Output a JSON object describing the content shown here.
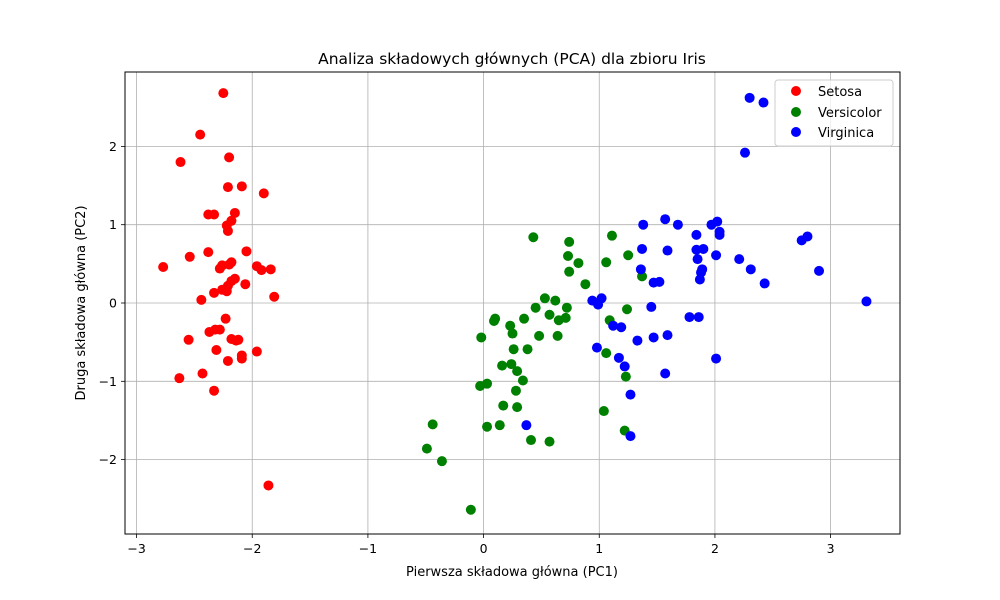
{
  "chart_data": {
    "type": "scatter",
    "title": "Analiza składowych głównych (PCA) dla zbioru Iris",
    "xlabel": "Pierwsza składowa główna (PC1)",
    "ylabel": "Druga składowa główna (PC2)",
    "xlim": [
      -3.1,
      3.6
    ],
    "ylim": [
      -2.95,
      2.95
    ],
    "x_ticks": [
      -3,
      -2,
      -1,
      0,
      1,
      2,
      3
    ],
    "x_tick_labels": [
      "−3",
      "−2",
      "−1",
      "0",
      "1",
      "2",
      "3"
    ],
    "y_ticks": [
      -2,
      -1,
      0,
      1,
      2
    ],
    "y_tick_labels": [
      "−2",
      "−1",
      "0",
      "1",
      "2"
    ],
    "grid": true,
    "legend_position": "top-right",
    "series": [
      {
        "name": "Setosa",
        "color": "#ff0000",
        "points": [
          [
            -2.25,
            2.68
          ],
          [
            -2.45,
            2.15
          ],
          [
            -2.62,
            1.8
          ],
          [
            -2.2,
            1.86
          ],
          [
            -2.21,
            1.48
          ],
          [
            -2.09,
            1.49
          ],
          [
            -1.9,
            1.4
          ],
          [
            -2.38,
            1.13
          ],
          [
            -2.33,
            1.13
          ],
          [
            -2.15,
            1.15
          ],
          [
            -2.18,
            1.05
          ],
          [
            -2.22,
            0.99
          ],
          [
            -2.21,
            0.92
          ],
          [
            -2.05,
            0.66
          ],
          [
            -2.38,
            0.65
          ],
          [
            -2.54,
            0.59
          ],
          [
            -2.77,
            0.46
          ],
          [
            -2.18,
            0.52
          ],
          [
            -2.2,
            0.49
          ],
          [
            -2.26,
            0.48
          ],
          [
            -2.28,
            0.44
          ],
          [
            -1.96,
            0.47
          ],
          [
            -1.92,
            0.42
          ],
          [
            -1.84,
            0.43
          ],
          [
            -2.15,
            0.31
          ],
          [
            -2.18,
            0.28
          ],
          [
            -2.21,
            0.22
          ],
          [
            -2.06,
            0.24
          ],
          [
            -2.22,
            0.15
          ],
          [
            -2.33,
            0.13
          ],
          [
            -2.26,
            0.17
          ],
          [
            -1.81,
            0.08
          ],
          [
            -2.44,
            0.04
          ],
          [
            -2.23,
            -0.2
          ],
          [
            -2.32,
            -0.34
          ],
          [
            -2.37,
            -0.37
          ],
          [
            -2.28,
            -0.34
          ],
          [
            -2.55,
            -0.47
          ],
          [
            -2.18,
            -0.46
          ],
          [
            -2.14,
            -0.48
          ],
          [
            -2.12,
            -0.47
          ],
          [
            -2.31,
            -0.6
          ],
          [
            -1.96,
            -0.62
          ],
          [
            -2.09,
            -0.67
          ],
          [
            -2.09,
            -0.71
          ],
          [
            -2.21,
            -0.74
          ],
          [
            -2.63,
            -0.96
          ],
          [
            -2.43,
            -0.9
          ],
          [
            -2.33,
            -1.12
          ],
          [
            -1.86,
            -2.33
          ]
        ]
      },
      {
        "name": "Versicolor",
        "color": "#008000",
        "points": [
          [
            0.43,
            0.84
          ],
          [
            0.74,
            0.78
          ],
          [
            1.11,
            0.86
          ],
          [
            0.82,
            0.51
          ],
          [
            1.06,
            0.52
          ],
          [
            1.25,
            0.61
          ],
          [
            0.73,
            0.6
          ],
          [
            0.74,
            0.4
          ],
          [
            0.88,
            0.24
          ],
          [
            1.37,
            0.34
          ],
          [
            0.62,
            0.03
          ],
          [
            0.53,
            0.06
          ],
          [
            0.45,
            -0.06
          ],
          [
            0.72,
            -0.06
          ],
          [
            1.24,
            -0.08
          ],
          [
            0.57,
            -0.15
          ],
          [
            0.71,
            -0.19
          ],
          [
            0.65,
            -0.22
          ],
          [
            1.09,
            -0.22
          ],
          [
            0.1,
            -0.2
          ],
          [
            0.09,
            -0.23
          ],
          [
            0.35,
            -0.2
          ],
          [
            0.23,
            -0.29
          ],
          [
            0.25,
            -0.39
          ],
          [
            0.48,
            -0.42
          ],
          [
            0.64,
            -0.42
          ],
          [
            -0.02,
            -0.44
          ],
          [
            0.38,
            -0.59
          ],
          [
            0.26,
            -0.59
          ],
          [
            1.06,
            -0.64
          ],
          [
            0.16,
            -0.8
          ],
          [
            0.24,
            -0.78
          ],
          [
            0.29,
            -0.87
          ],
          [
            0.34,
            -0.99
          ],
          [
            0.03,
            -1.03
          ],
          [
            -0.03,
            -1.06
          ],
          [
            1.23,
            -0.94
          ],
          [
            0.28,
            -1.12
          ],
          [
            0.17,
            -1.31
          ],
          [
            0.29,
            -1.33
          ],
          [
            1.04,
            -1.38
          ],
          [
            -0.44,
            -1.55
          ],
          [
            0.14,
            -1.56
          ],
          [
            0.03,
            -1.58
          ],
          [
            1.22,
            -1.63
          ],
          [
            0.41,
            -1.75
          ],
          [
            0.57,
            -1.77
          ],
          [
            -0.49,
            -1.86
          ],
          [
            -0.36,
            -2.02
          ],
          [
            -0.11,
            -2.64
          ]
        ]
      },
      {
        "name": "Virginica",
        "color": "#0000ff",
        "points": [
          [
            2.3,
            2.62
          ],
          [
            2.42,
            2.56
          ],
          [
            2.26,
            1.92
          ],
          [
            1.57,
            1.07
          ],
          [
            2.02,
            1.04
          ],
          [
            1.38,
            1.0
          ],
          [
            1.68,
            1.0
          ],
          [
            1.97,
            1.0
          ],
          [
            2.04,
            0.91
          ],
          [
            2.04,
            0.87
          ],
          [
            1.84,
            0.87
          ],
          [
            2.8,
            0.85
          ],
          [
            2.75,
            0.8
          ],
          [
            1.59,
            0.67
          ],
          [
            1.37,
            0.69
          ],
          [
            1.84,
            0.68
          ],
          [
            1.9,
            0.69
          ],
          [
            2.01,
            0.61
          ],
          [
            1.85,
            0.56
          ],
          [
            2.21,
            0.56
          ],
          [
            2.31,
            0.43
          ],
          [
            1.36,
            0.43
          ],
          [
            1.89,
            0.43
          ],
          [
            2.9,
            0.41
          ],
          [
            1.88,
            0.39
          ],
          [
            1.87,
            0.3
          ],
          [
            1.52,
            0.27
          ],
          [
            1.47,
            0.26
          ],
          [
            2.43,
            0.25
          ],
          [
            3.31,
            0.02
          ],
          [
            1.02,
            0.06
          ],
          [
            0.94,
            0.03
          ],
          [
            0.99,
            -0.02
          ],
          [
            1.45,
            -0.05
          ],
          [
            1.78,
            -0.18
          ],
          [
            1.86,
            -0.18
          ],
          [
            1.12,
            -0.29
          ],
          [
            1.19,
            -0.31
          ],
          [
            1.59,
            -0.41
          ],
          [
            1.47,
            -0.44
          ],
          [
            1.33,
            -0.48
          ],
          [
            0.98,
            -0.57
          ],
          [
            1.17,
            -0.7
          ],
          [
            2.01,
            -0.71
          ],
          [
            1.22,
            -0.81
          ],
          [
            1.57,
            -0.9
          ],
          [
            1.27,
            -1.17
          ],
          [
            0.37,
            -1.56
          ],
          [
            1.27,
            -1.7
          ]
        ]
      }
    ]
  }
}
